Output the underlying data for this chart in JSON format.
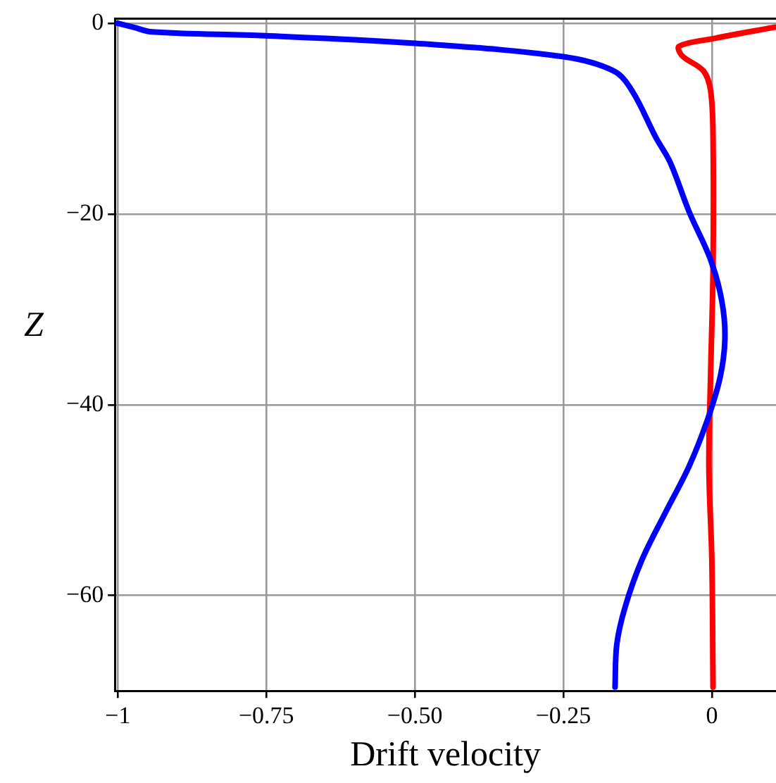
{
  "chart_data": {
    "type": "line",
    "xlabel": "Drift velocity",
    "ylabel": "Z",
    "xlim": [
      -1.005,
      0.108
    ],
    "ylim": [
      -70,
      0.5
    ],
    "xticks": [
      {
        "value": -1,
        "label": "−1"
      },
      {
        "value": -0.75,
        "label": "−0.75"
      },
      {
        "value": -0.5,
        "label": "−0.50"
      },
      {
        "value": -0.25,
        "label": "−0.25"
      },
      0
    ],
    "yticks": [
      0,
      {
        "value": -20,
        "label": "−20"
      },
      {
        "value": -40,
        "label": "−40"
      },
      {
        "value": -60,
        "label": "−60"
      }
    ],
    "grid": true,
    "legend": false,
    "marker": "none",
    "line_style": "solid",
    "series": [
      {
        "color": "#0000ff",
        "x": [
          -1,
          -0.974,
          -0.942,
          -0.751,
          -0.499,
          -0.25,
          -0.165,
          -0.134,
          -0.094,
          -0.07,
          -0.038,
          -0.002,
          0.017,
          0.022,
          0.014,
          -0.007,
          -0.038,
          -0.079,
          -0.118,
          -0.146,
          -0.16,
          -0.163
        ],
        "values": [
          0,
          -0.4,
          -0.9,
          -1.3,
          -2.1,
          -3.5,
          -5,
          -7.1,
          -12,
          -14.6,
          -19.8,
          -24.8,
          -29.2,
          -33.1,
          -37.1,
          -41.5,
          -46.4,
          -51.4,
          -56.3,
          -61.2,
          -65.1,
          -69.6
        ]
      },
      {
        "color": "#ff0000",
        "x": [
          0.106,
          0.002,
          -0.055,
          -0.05,
          -0.014,
          -0.002,
          0.002,
          0.002,
          -0.002,
          -0.005,
          0,
          0.002
        ],
        "values": [
          -0.4,
          -1.6,
          -2.4,
          -3.4,
          -5,
          -7.1,
          -12,
          -25.7,
          -36.6,
          -46.4,
          -56.3,
          -69.6
        ]
      }
    ]
  }
}
